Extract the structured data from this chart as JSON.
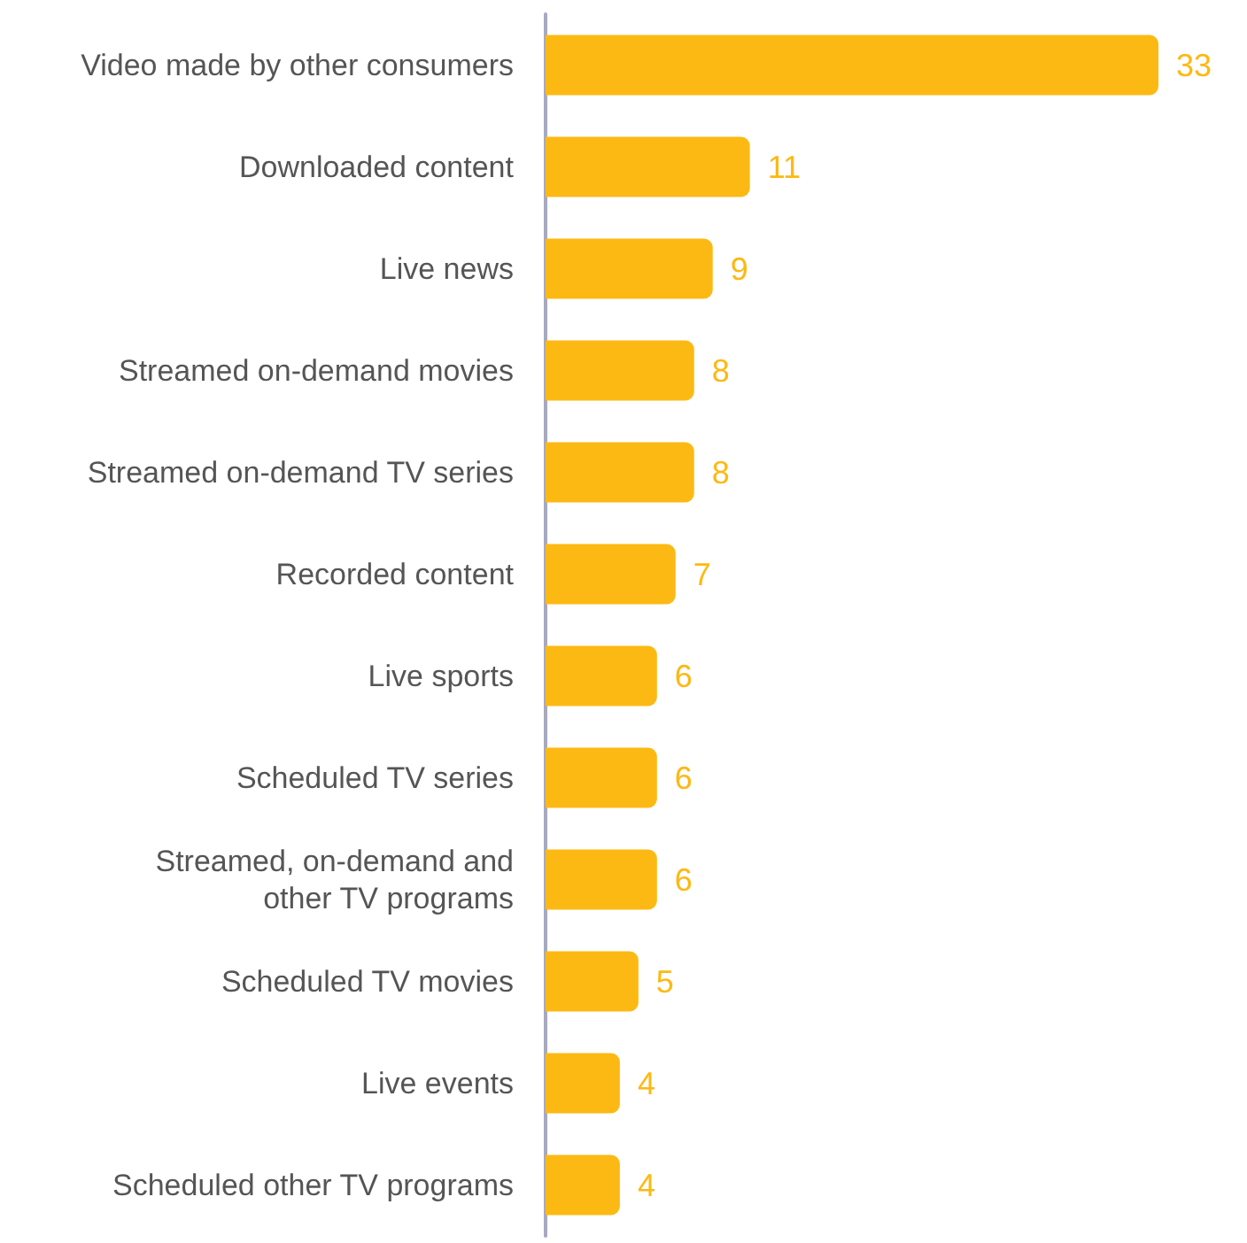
{
  "chart_data": {
    "type": "bar",
    "orientation": "horizontal",
    "categories": [
      "Video made by other consumers",
      "Downloaded content",
      "Live news",
      "Streamed on-demand movies",
      "Streamed on-demand TV series",
      "Recorded content",
      "Live sports",
      "Scheduled TV series",
      "Streamed, on-demand and\nother TV programs",
      "Scheduled TV movies",
      "Live events",
      "Scheduled other TV programs"
    ],
    "values": [
      33,
      11,
      9,
      8,
      8,
      7,
      6,
      6,
      6,
      5,
      4,
      4
    ],
    "color": "#fdb913",
    "data_labels": true
  }
}
